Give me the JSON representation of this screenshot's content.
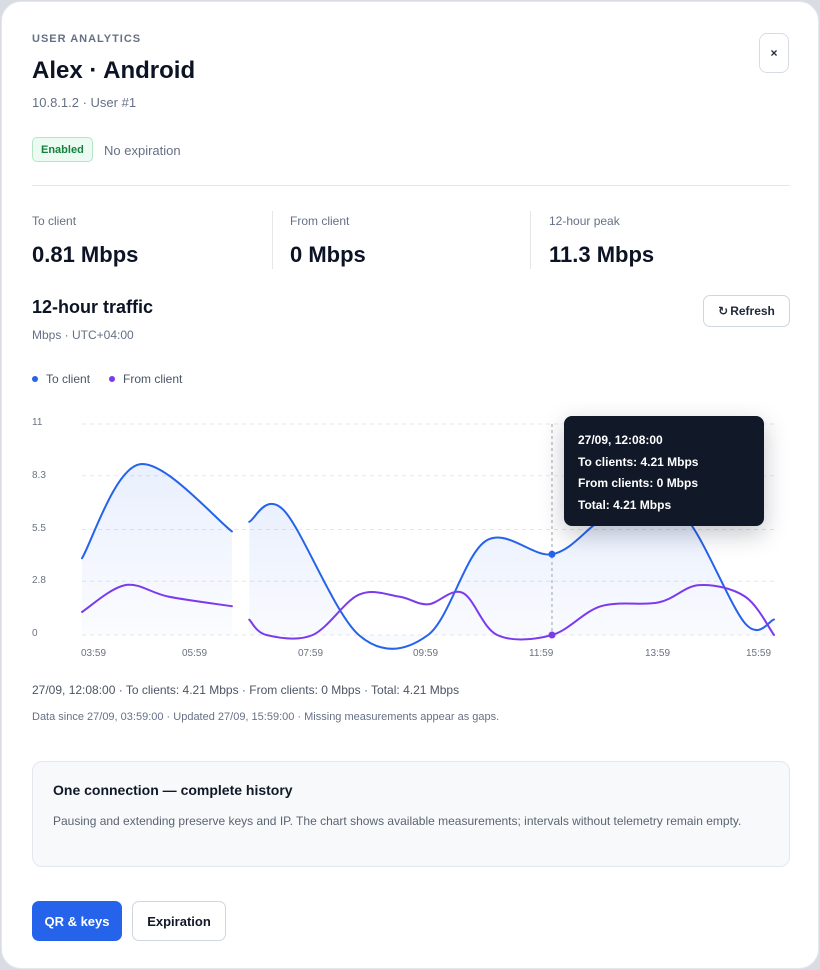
{
  "header": {
    "eyebrow": "USER ANALYTICS",
    "title": "Alex · Android",
    "subtitle": "10.8.1.2 · User #1",
    "close_label": "×"
  },
  "status": {
    "badge": "Enabled",
    "expiry": "No expiration"
  },
  "stats": [
    {
      "label": "To client",
      "value": "0.81 Mbps"
    },
    {
      "label": "From client",
      "value": "0 Mbps"
    },
    {
      "label": "12-hour peak",
      "value": "11.3 Mbps"
    }
  ],
  "traffic": {
    "title": "12-hour traffic",
    "subtitle": "Mbps · UTC+04:00",
    "refresh_icon": "↻",
    "refresh_label": "Refresh"
  },
  "legend": [
    {
      "label": "To client",
      "color": "#2563eb"
    },
    {
      "label": "From client",
      "color": "#7c3aed"
    }
  ],
  "tooltip": {
    "time": "27/09, 12:08:00",
    "to": "To clients: 4.21 Mbps",
    "from": "From clients: 0 Mbps",
    "total": "Total: 4.21 Mbps"
  },
  "readout": "27/09, 12:08:00 · To clients: 4.21 Mbps · From clients: 0 Mbps · Total: 4.21 Mbps",
  "footnote": "Data since 27/09, 03:59:00 · Updated 27/09, 15:59:00 · Missing measurements appear as gaps.",
  "info": {
    "title": "One connection — complete history",
    "text": "Pausing and extending preserve keys and IP. The chart shows available measurements; intervals without telemetry remain empty."
  },
  "actions": {
    "primary": "QR & keys",
    "secondary": "Expiration"
  },
  "chart_data": {
    "type": "line",
    "y_ticks": [
      "11",
      "8.3",
      "5.5",
      "2.8",
      "0"
    ],
    "x_ticks": [
      "03:59",
      "05:59",
      "07:59",
      "09:59",
      "11:59",
      "13:59",
      "15:59"
    ],
    "x_unit": "hours since 03:59",
    "ylim": [
      0,
      11
    ],
    "xlim": [
      0,
      12
    ],
    "grid": true,
    "legend_position": "top-left",
    "highlight": {
      "x": 8.15,
      "to_client": 4.21,
      "from_client": 0
    },
    "series": [
      {
        "name": "To client",
        "color": "#2563eb",
        "segments": [
          [
            [
              0,
              4.0
            ],
            [
              1,
              8.9
            ],
            [
              2.6,
              5.4
            ]
          ],
          [
            [
              2.9,
              5.9
            ],
            [
              3.5,
              6.5
            ],
            [
              4.8,
              0
            ],
            [
              6,
              0
            ],
            [
              7,
              4.9
            ],
            [
              8.15,
              4.21
            ],
            [
              9,
              6.0
            ],
            [
              9.7,
              7.0
            ],
            [
              10.5,
              6.0
            ],
            [
              11.5,
              0.6
            ],
            [
              12,
              0.81
            ]
          ]
        ]
      },
      {
        "name": "From client",
        "color": "#7c3aed",
        "segments": [
          [
            [
              0,
              1.2
            ],
            [
              0.75,
              2.6
            ],
            [
              1.5,
              2.0
            ],
            [
              2.6,
              1.5
            ]
          ],
          [
            [
              2.9,
              0.8
            ],
            [
              3.2,
              0
            ],
            [
              4,
              0
            ],
            [
              4.8,
              2.1
            ],
            [
              5.5,
              2.0
            ],
            [
              6,
              1.6
            ],
            [
              6.6,
              2.2
            ],
            [
              7.2,
              0
            ],
            [
              8.15,
              0
            ],
            [
              9,
              1.5
            ],
            [
              10,
              1.7
            ],
            [
              10.7,
              2.6
            ],
            [
              11.5,
              2.0
            ],
            [
              12,
              0
            ]
          ]
        ]
      }
    ]
  }
}
